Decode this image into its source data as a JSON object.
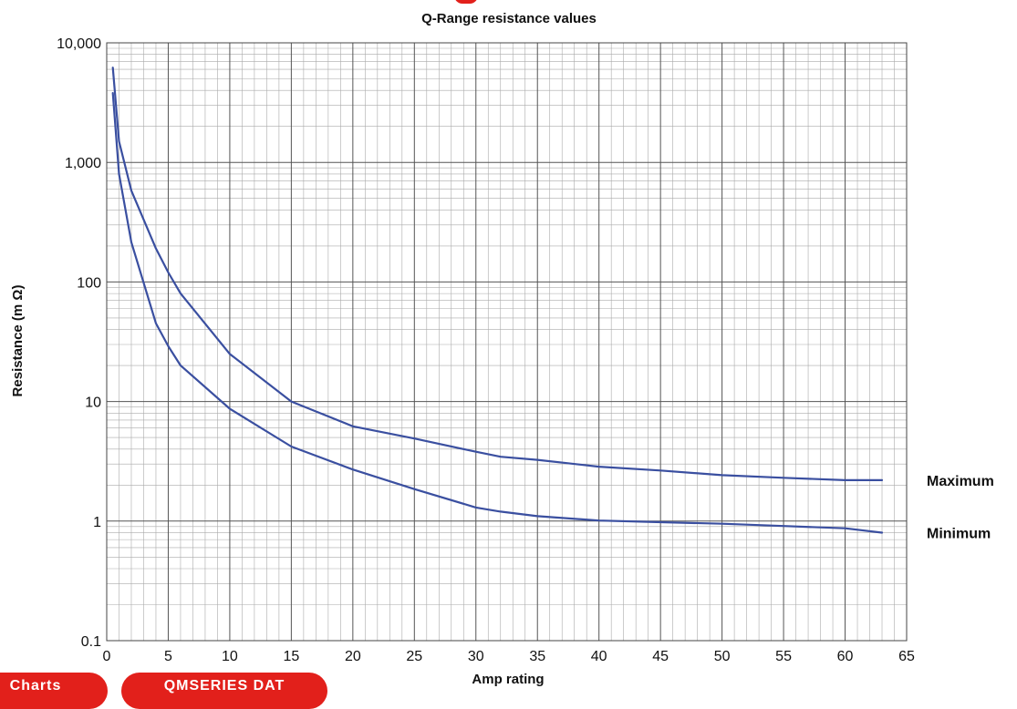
{
  "chart_data": {
    "type": "line",
    "title": "Q-Range resistance values",
    "xlabel": "Amp rating",
    "ylabel": "Resistance (m Ω)",
    "xlim": [
      0,
      65
    ],
    "ylim": [
      0.1,
      10000
    ],
    "yscale": "log",
    "grid": true,
    "x_ticks": [
      0,
      5,
      10,
      15,
      20,
      25,
      30,
      35,
      40,
      45,
      50,
      55,
      60,
      65
    ],
    "y_ticks": [
      {
        "value": 0.1,
        "label": "0.1"
      },
      {
        "value": 1,
        "label": "1"
      },
      {
        "value": 10,
        "label": "10"
      },
      {
        "value": 100,
        "label": "100"
      },
      {
        "value": 1000,
        "label": "1,000"
      },
      {
        "value": 10000,
        "label": "10,000"
      }
    ],
    "series": [
      {
        "name": "Maximum",
        "color": "#3a4fa0",
        "points": [
          [
            0.5,
            6200
          ],
          [
            1,
            1500
          ],
          [
            2,
            580
          ],
          [
            4,
            190
          ],
          [
            5,
            120
          ],
          [
            6,
            80
          ],
          [
            10,
            25
          ],
          [
            15,
            10
          ],
          [
            20,
            6.2
          ],
          [
            25,
            4.9
          ],
          [
            30,
            3.8
          ],
          [
            32,
            3.45
          ],
          [
            35,
            3.25
          ],
          [
            40,
            2.85
          ],
          [
            45,
            2.65
          ],
          [
            50,
            2.42
          ],
          [
            55,
            2.3
          ],
          [
            60,
            2.2
          ],
          [
            63,
            2.2
          ]
        ]
      },
      {
        "name": "Minimum",
        "color": "#3a4fa0",
        "points": [
          [
            0.5,
            3800
          ],
          [
            1,
            800
          ],
          [
            2,
            215
          ],
          [
            4,
            45
          ],
          [
            5,
            29
          ],
          [
            6,
            20
          ],
          [
            10,
            8.7
          ],
          [
            15,
            4.2
          ],
          [
            20,
            2.7
          ],
          [
            25,
            1.85
          ],
          [
            30,
            1.3
          ],
          [
            32,
            1.2
          ],
          [
            35,
            1.1
          ],
          [
            40,
            1.01
          ],
          [
            45,
            0.98
          ],
          [
            50,
            0.95
          ],
          [
            55,
            0.91
          ],
          [
            60,
            0.87
          ],
          [
            63,
            0.8
          ]
        ]
      }
    ]
  },
  "tabs": {
    "left_label": "Charts",
    "right_label": "QMSERIES DAT"
  }
}
